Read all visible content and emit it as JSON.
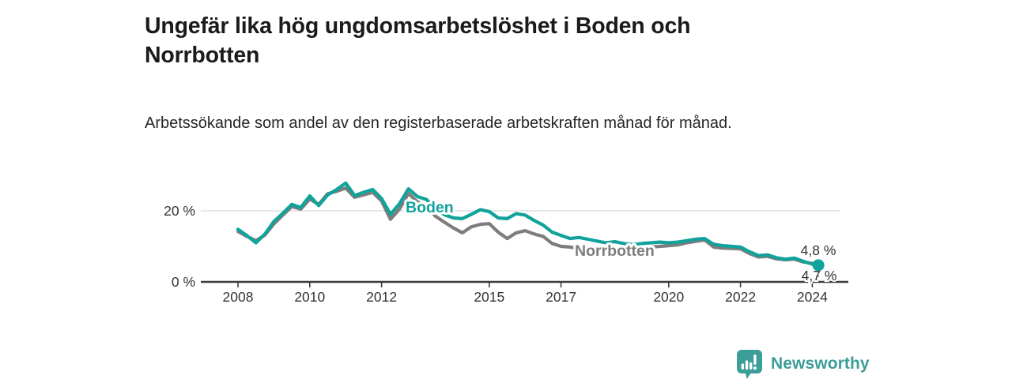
{
  "title": "Ungefär lika hög ungdomsarbetslöshet i Boden och Norrbotten",
  "subtitle": "Arbetssökande som andel av den registerbaserade arbetskraften månad för månad.",
  "branding": {
    "name": "Newsworthy",
    "icon": "newsworthy-logo-icon",
    "color": "#3b9e98"
  },
  "colors": {
    "accent_teal": "#10a29b",
    "line_gray": "#7d7d7d",
    "axis_text": "#333333",
    "axis_line": "#3c3c3c",
    "gridline": "#dadada",
    "title_text": "#1b1b1b"
  },
  "chart_data": {
    "type": "line",
    "title": "Ungefär lika hög ungdomsarbetslöshet i Boden och Norrbotten",
    "subtitle": "Arbetssökande som andel av den registerbaserade arbetskraften månad för månad.",
    "grid": "horizontal-20-only",
    "legend_position": "inline-line-labels",
    "xlim": [
      2007.9,
      2025.0
    ],
    "ylim": [
      0,
      30
    ],
    "x_ticks": [
      {
        "year": 2008,
        "label": "2008"
      },
      {
        "year": 2010,
        "label": "2010"
      },
      {
        "year": 2012,
        "label": "2012"
      },
      {
        "year": 2015,
        "label": "2015"
      },
      {
        "year": 2017,
        "label": "2017"
      },
      {
        "year": 2020,
        "label": "2020"
      },
      {
        "year": 2022,
        "label": "2022"
      },
      {
        "year": 2024,
        "label": "2024"
      }
    ],
    "y_ticks": [
      {
        "value": 20,
        "label": "20 %"
      },
      {
        "value": 0,
        "label": "0 %"
      }
    ],
    "x": [
      2008.0,
      2008.25,
      2008.5,
      2008.75,
      2009.0,
      2009.25,
      2009.5,
      2009.75,
      2010.0,
      2010.25,
      2010.5,
      2010.75,
      2011.0,
      2011.25,
      2011.5,
      2011.75,
      2012.0,
      2012.25,
      2012.5,
      2012.75,
      2013.0,
      2013.25,
      2013.5,
      2013.75,
      2014.0,
      2014.25,
      2014.5,
      2014.75,
      2015.0,
      2015.25,
      2015.5,
      2015.75,
      2016.0,
      2016.25,
      2016.5,
      2016.75,
      2017.0,
      2017.25,
      2017.5,
      2017.75,
      2018.0,
      2018.25,
      2018.5,
      2018.75,
      2019.0,
      2019.25,
      2019.5,
      2019.75,
      2020.0,
      2020.25,
      2020.5,
      2020.75,
      2021.0,
      2021.25,
      2021.5,
      2021.75,
      2022.0,
      2022.25,
      2022.5,
      2022.75,
      2023.0,
      2023.25,
      2023.5,
      2023.75,
      2024.0,
      2024.17
    ],
    "series": [
      {
        "name": "Norrbotten",
        "color": "#7d7d7d",
        "end_label": "4,8 %",
        "end_value": 4.8,
        "end_dot": false,
        "values": [
          14.2,
          12.8,
          11.6,
          13.2,
          16.3,
          18.8,
          21.2,
          20.5,
          23.3,
          21.8,
          24.8,
          25.5,
          26.4,
          23.8,
          24.5,
          25.2,
          22.8,
          17.6,
          20.5,
          24.9,
          22.5,
          21.5,
          18.5,
          16.8,
          15.2,
          13.8,
          15.5,
          16.2,
          16.4,
          14.0,
          12.2,
          13.8,
          14.4,
          13.5,
          12.8,
          10.8,
          10.0,
          9.8,
          9.3,
          9.6,
          9.2,
          8.9,
          9.4,
          9.0,
          9.2,
          9.5,
          9.8,
          10.0,
          10.2,
          10.4,
          11.0,
          11.4,
          11.8,
          9.8,
          9.5,
          9.4,
          9.3,
          8.0,
          7.0,
          7.2,
          6.5,
          6.2,
          6.4,
          5.6,
          5.2,
          4.8
        ]
      },
      {
        "name": "Boden",
        "color": "#10a29b",
        "end_label": "4,7 %",
        "end_value": 4.7,
        "end_dot": true,
        "values": [
          14.8,
          13.0,
          11.0,
          13.5,
          17.0,
          19.3,
          21.8,
          20.9,
          24.2,
          21.5,
          24.5,
          26.0,
          27.8,
          24.3,
          25.2,
          26.0,
          23.5,
          19.0,
          22.0,
          26.2,
          24.0,
          23.2,
          20.5,
          18.9,
          18.0,
          17.8,
          19.0,
          20.3,
          19.8,
          18.0,
          17.8,
          19.2,
          18.8,
          17.3,
          16.0,
          14.0,
          13.1,
          12.2,
          12.5,
          12.0,
          11.5,
          11.0,
          11.3,
          10.8,
          10.5,
          10.8,
          11.0,
          11.2,
          11.0,
          11.2,
          11.6,
          12.0,
          12.2,
          10.6,
          10.2,
          10.0,
          9.8,
          8.5,
          7.4,
          7.6,
          6.8,
          6.4,
          6.7,
          5.8,
          5.0,
          4.7
        ]
      }
    ]
  }
}
